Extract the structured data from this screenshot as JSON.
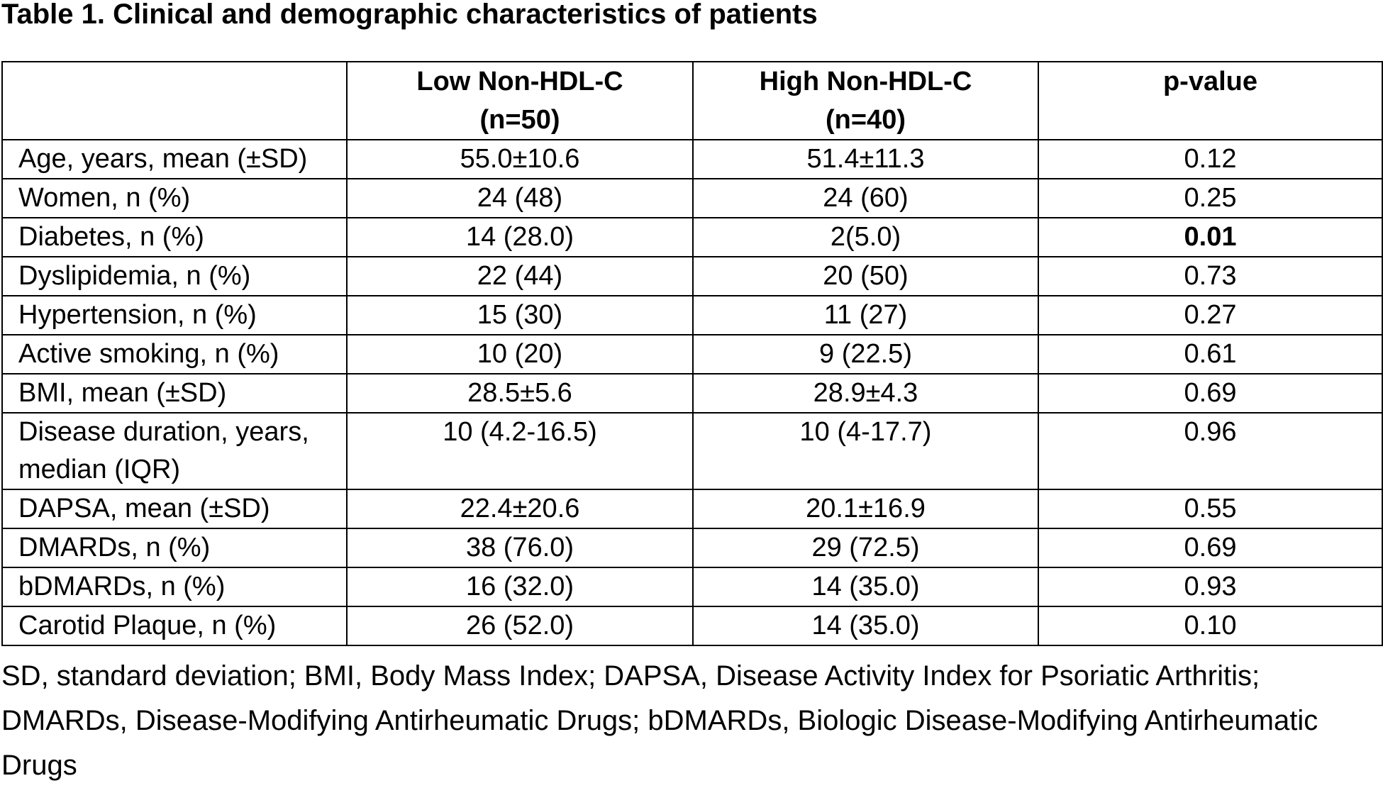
{
  "title": "Table 1. Clinical and demographic characteristics of patients",
  "table": {
    "headers": [
      {
        "line1": "",
        "line2": ""
      },
      {
        "line1": "Low Non-HDL-C",
        "line2": "(n=50)"
      },
      {
        "line1": "High Non-HDL-C",
        "line2": "(n=40)"
      },
      {
        "line1": "p-value",
        "line2": ""
      }
    ],
    "rows": [
      {
        "label": "Age, years, mean (±SD)",
        "low": "55.0±10.6",
        "high": "51.4±11.3",
        "p": "0.12",
        "significant": false
      },
      {
        "label": "Women, n (%)",
        "low": "24 (48)",
        "high": "24 (60)",
        "p": "0.25",
        "significant": false
      },
      {
        "label": "Diabetes, n (%)",
        "low": "14 (28.0)",
        "high": "2(5.0)",
        "p": "0.01",
        "significant": true
      },
      {
        "label": "Dyslipidemia, n (%)",
        "low": "22 (44)",
        "high": "20 (50)",
        "p": "0.73",
        "significant": false
      },
      {
        "label": "Hypertension, n (%)",
        "low": "15 (30)",
        "high": "11 (27)",
        "p": "0.27",
        "significant": false
      },
      {
        "label": "Active smoking, n (%)",
        "low": "10 (20)",
        "high": "9 (22.5)",
        "p": "0.61",
        "significant": false
      },
      {
        "label": "BMI, mean (±SD)",
        "low": "28.5±5.6",
        "high": "28.9±4.3",
        "p": "0.69",
        "significant": false
      },
      {
        "label": "Disease duration, years, median (IQR)",
        "low": "10 (4.2-16.5)",
        "high": "10 (4-17.7)",
        "p": "0.96",
        "significant": false
      },
      {
        "label": "DAPSA, mean (±SD)",
        "low": "22.4±20.6",
        "high": "20.1±16.9",
        "p": "0.55",
        "significant": false
      },
      {
        "label": "DMARDs, n (%)",
        "low": "38 (76.0)",
        "high": "29 (72.5)",
        "p": "0.69",
        "significant": false
      },
      {
        "label": "bDMARDs, n (%)",
        "low": "16 (32.0)",
        "high": "14 (35.0)",
        "p": "0.93",
        "significant": false
      },
      {
        "label": "Carotid Plaque, n (%)",
        "low": "26 (52.0)",
        "high": "14 (35.0)",
        "p": "0.10",
        "significant": false
      }
    ]
  },
  "footnote": "SD, standard deviation; BMI, Body Mass Index; DAPSA, Disease Activity Index for Psoriatic Arthritis; DMARDs, Disease-Modifying Antirheumatic Drugs; bDMARDs, Biologic Disease-Modifying Antirheumatic Drugs"
}
